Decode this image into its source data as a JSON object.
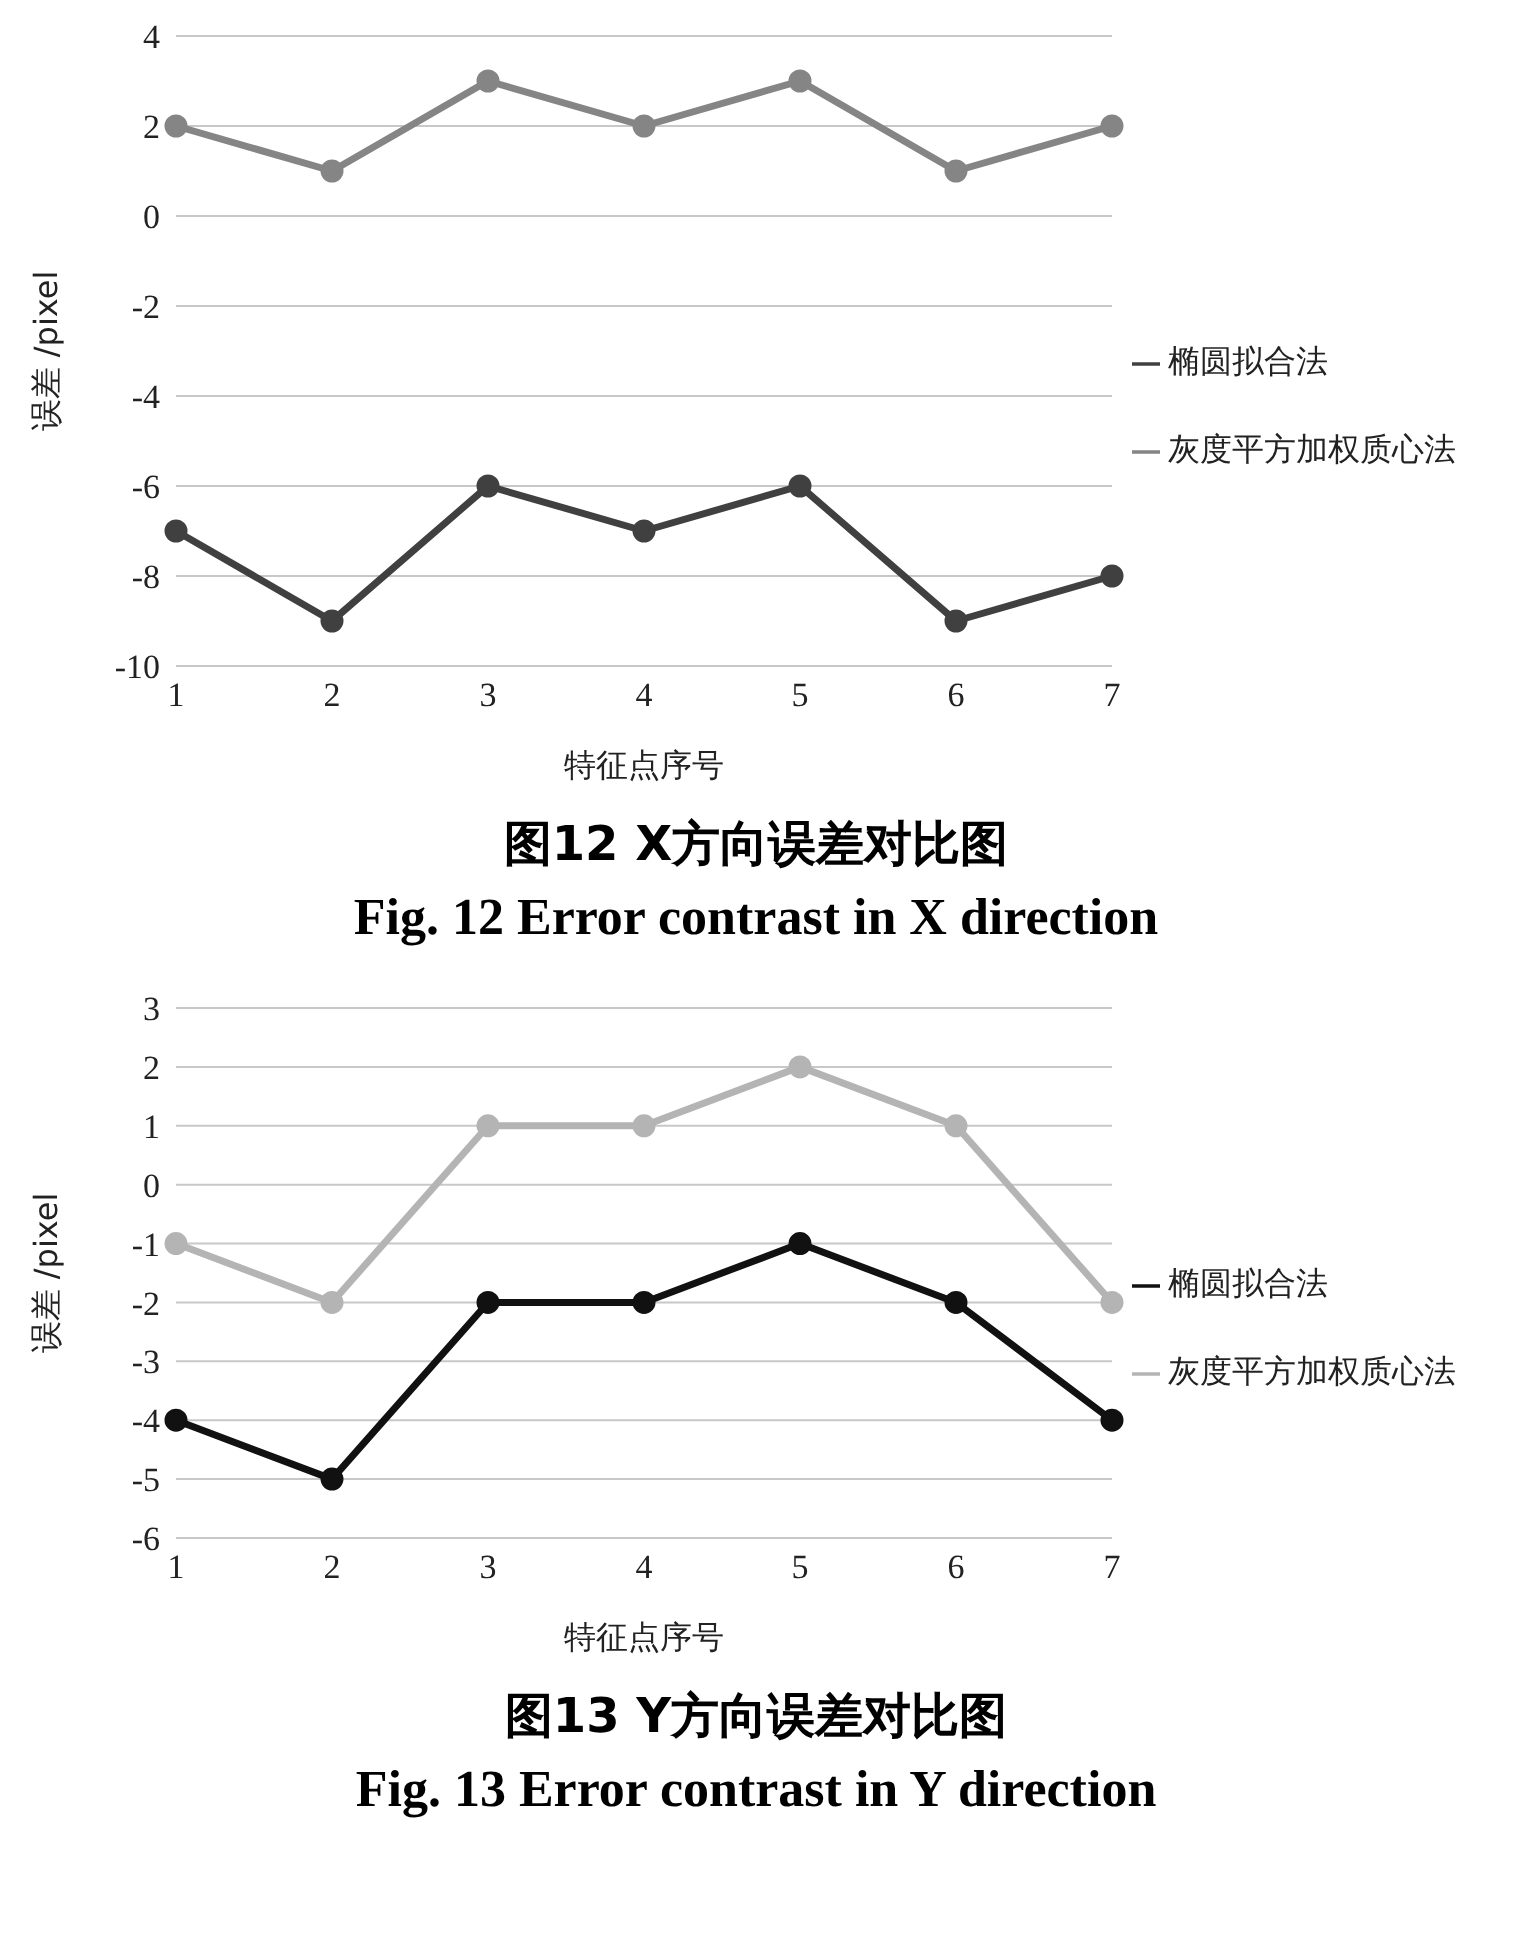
{
  "chart_data": [
    {
      "type": "line",
      "title": "图12  X方向误差对比图",
      "subtitle": "Fig. 12  Error contrast in X direction",
      "xlabel": "特征点序号",
      "ylabel": "误差 /pixel",
      "categories": [
        "1",
        "2",
        "3",
        "4",
        "5",
        "6",
        "7"
      ],
      "ylim": [
        -10,
        4
      ],
      "yticks": [
        -10,
        -8,
        -6,
        -4,
        -2,
        0,
        2,
        4
      ],
      "grid": "y",
      "legend": "right",
      "marker": "circle",
      "line_style": "solid",
      "series": [
        {
          "name": "椭圆拟合法",
          "color": "#404040",
          "values": [
            -7,
            -9,
            -6,
            -7,
            -6,
            -9,
            -8
          ]
        },
        {
          "name": "灰度平方加权质心法",
          "color": "#858585",
          "values": [
            2,
            1,
            3,
            2,
            3,
            1,
            2
          ]
        }
      ]
    },
    {
      "type": "line",
      "title": "图13  Y方向误差对比图",
      "subtitle": "Fig. 13  Error contrast in Y direction",
      "xlabel": "特征点序号",
      "ylabel": "误差 /pixel",
      "categories": [
        "1",
        "2",
        "3",
        "4",
        "5",
        "6",
        "7"
      ],
      "ylim": [
        -6,
        3
      ],
      "yticks": [
        -6,
        -5,
        -4,
        -3,
        -2,
        -1,
        0,
        1,
        2,
        3
      ],
      "grid": "y",
      "legend": "right",
      "marker": "circle",
      "line_style": "solid",
      "series": [
        {
          "name": "椭圆拟合法",
          "color": "#111111",
          "values": [
            -4,
            -5,
            -2,
            -2,
            -1,
            -2,
            -4
          ]
        },
        {
          "name": "灰度平方加权质心法",
          "color": "#b4b4b4",
          "values": [
            -1,
            -2,
            1,
            1,
            2,
            1,
            -2
          ]
        }
      ]
    }
  ]
}
